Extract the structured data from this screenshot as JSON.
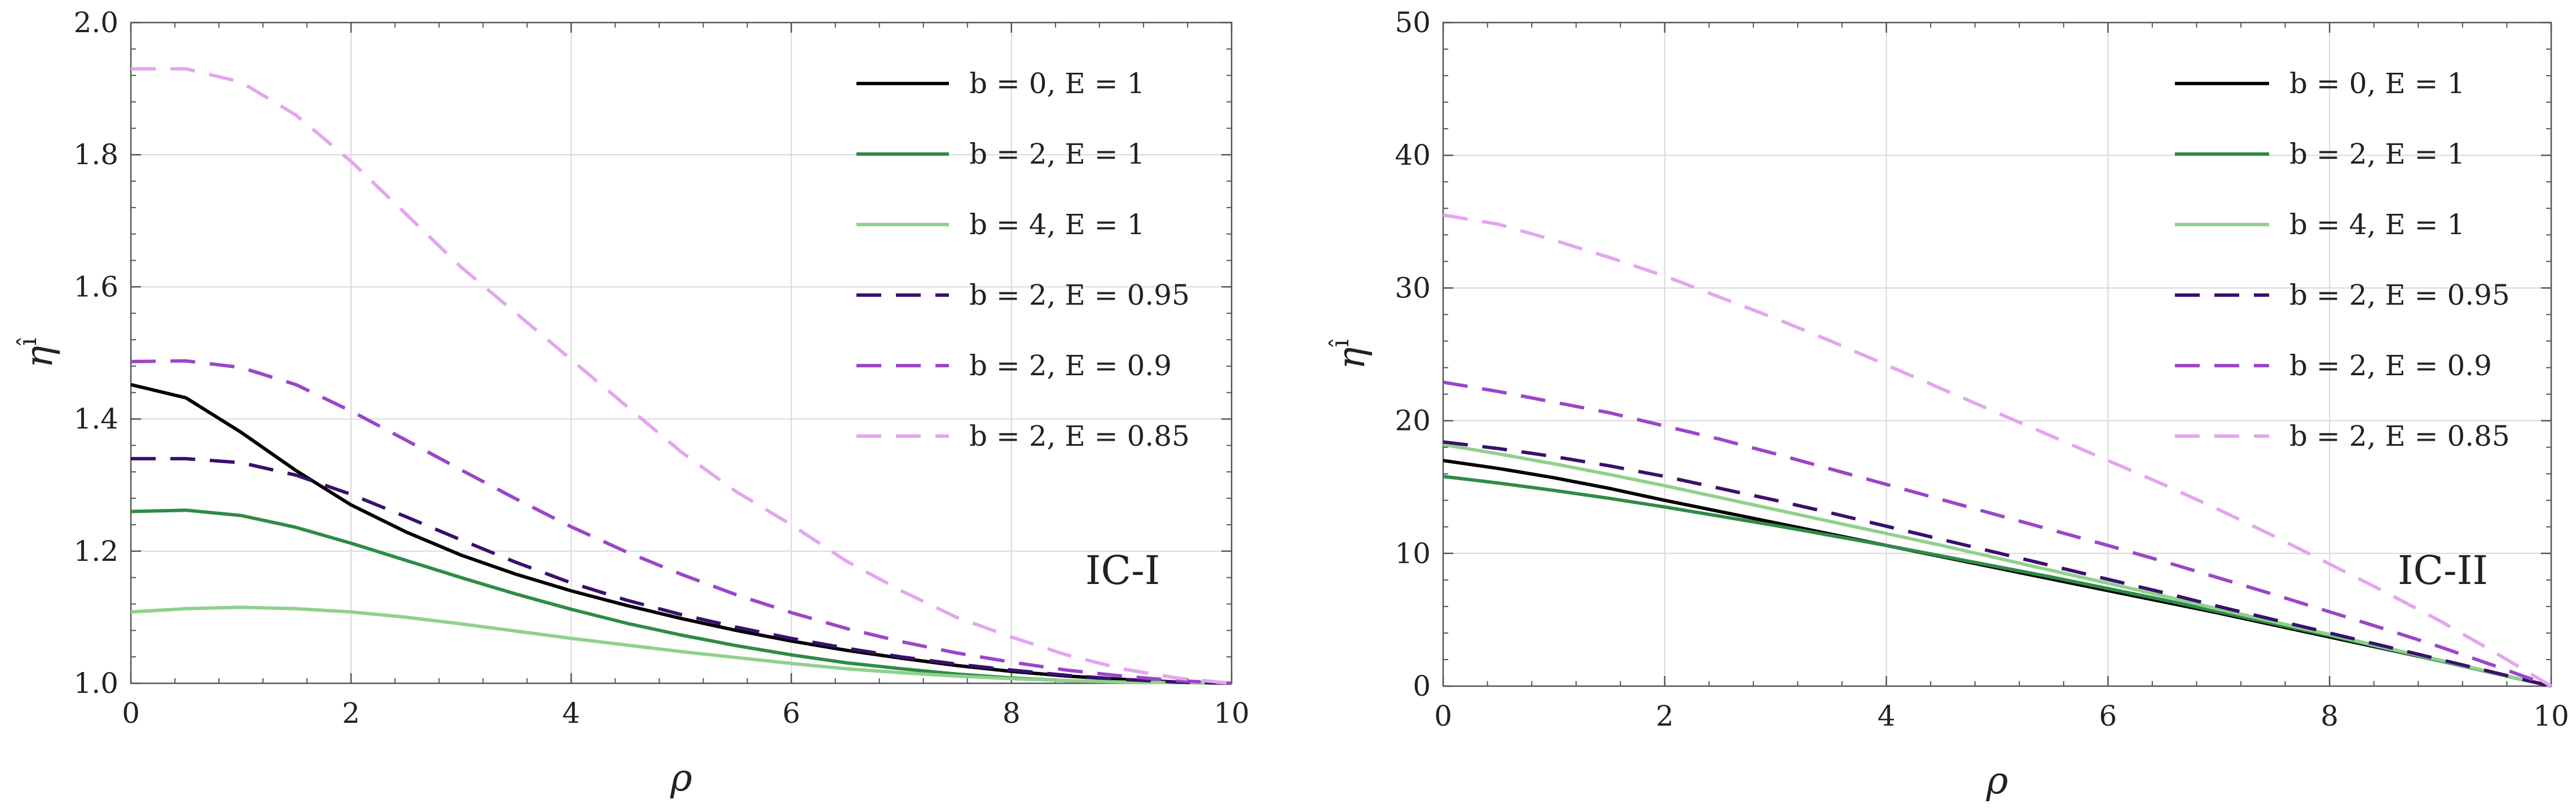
{
  "chart_data": [
    {
      "type": "line",
      "panel": "left",
      "annotation": "IC-I",
      "xlabel": "ρ",
      "ylabel": "η",
      "ylabel_superscript": "î",
      "xlim": [
        0,
        10
      ],
      "ylim": [
        1.0,
        2.0
      ],
      "xticks": [
        0,
        2,
        4,
        6,
        8,
        10
      ],
      "xtick_labels": [
        "0",
        "2",
        "4",
        "6",
        "8",
        "10"
      ],
      "yticks": [
        1.0,
        1.2,
        1.4,
        1.6,
        1.8,
        2.0
      ],
      "ytick_labels": [
        "1.0",
        "1.2",
        "1.4",
        "1.6",
        "1.8",
        "2.0"
      ],
      "grid": true,
      "legend_position": "top-right",
      "x": [
        0,
        0.5,
        1,
        1.5,
        2,
        2.5,
        3,
        3.5,
        4,
        4.5,
        5,
        5.5,
        6,
        6.5,
        7,
        7.5,
        8,
        8.5,
        9,
        9.5,
        10
      ],
      "series": [
        {
          "name": "b = 0,  E = 1",
          "color": "#000000",
          "dash": "solid",
          "values": [
            1.452,
            1.432,
            1.38,
            1.322,
            1.27,
            1.229,
            1.194,
            1.165,
            1.14,
            1.118,
            1.098,
            1.08,
            1.064,
            1.05,
            1.038,
            1.027,
            1.018,
            1.011,
            1.006,
            1.002,
            1.0
          ]
        },
        {
          "name": "b = 2,  E = 1",
          "color": "#2e8b47",
          "dash": "solid",
          "values": [
            1.26,
            1.262,
            1.254,
            1.236,
            1.212,
            1.186,
            1.16,
            1.135,
            1.112,
            1.091,
            1.073,
            1.057,
            1.043,
            1.031,
            1.022,
            1.014,
            1.008,
            1.004,
            1.002,
            1.001,
            1.0
          ]
        },
        {
          "name": "b = 4,  E = 1",
          "color": "#8fd18c",
          "dash": "solid",
          "values": [
            1.108,
            1.113,
            1.115,
            1.113,
            1.108,
            1.1,
            1.09,
            1.079,
            1.068,
            1.058,
            1.048,
            1.039,
            1.03,
            1.022,
            1.016,
            1.011,
            1.007,
            1.004,
            1.002,
            1.001,
            1.0
          ]
        },
        {
          "name": "b = 2,  E = 0.95",
          "color": "#3a0f6e",
          "dash": "dashed",
          "values": [
            1.34,
            1.34,
            1.334,
            1.315,
            1.286,
            1.252,
            1.217,
            1.183,
            1.152,
            1.126,
            1.104,
            1.085,
            1.068,
            1.053,
            1.04,
            1.029,
            1.02,
            1.012,
            1.006,
            1.002,
            1.0
          ]
        },
        {
          "name": "b = 2,  E = 0.9",
          "color": "#9b45c9",
          "dash": "dashed",
          "values": [
            1.487,
            1.488,
            1.478,
            1.452,
            1.412,
            1.368,
            1.323,
            1.279,
            1.237,
            1.199,
            1.165,
            1.134,
            1.107,
            1.083,
            1.063,
            1.046,
            1.032,
            1.02,
            1.011,
            1.004,
            1.0
          ]
        },
        {
          "name": "b = 2,  E = 0.85",
          "color": "#e3a6ee",
          "dash": "dashed",
          "values": [
            1.93,
            1.93,
            1.91,
            1.86,
            1.79,
            1.71,
            1.63,
            1.56,
            1.49,
            1.42,
            1.35,
            1.29,
            1.24,
            1.185,
            1.14,
            1.1,
            1.07,
            1.043,
            1.022,
            1.008,
            1.0
          ]
        }
      ]
    },
    {
      "type": "line",
      "panel": "right",
      "annotation": "IC-II",
      "xlabel": "ρ",
      "ylabel": "η",
      "ylabel_superscript": "î",
      "xlim": [
        0,
        10
      ],
      "ylim": [
        0,
        50
      ],
      "xticks": [
        0,
        2,
        4,
        6,
        8,
        10
      ],
      "xtick_labels": [
        "0",
        "2",
        "4",
        "6",
        "8",
        "10"
      ],
      "yticks": [
        0,
        10,
        20,
        30,
        40,
        50
      ],
      "ytick_labels": [
        "0",
        "10",
        "20",
        "30",
        "40",
        "50"
      ],
      "grid": true,
      "legend_position": "top-right",
      "x": [
        0,
        0.5,
        1,
        1.5,
        2,
        2.5,
        3,
        3.5,
        4,
        4.5,
        5,
        5.5,
        6,
        6.5,
        7,
        7.5,
        8,
        8.5,
        9,
        9.5,
        10
      ],
      "series": [
        {
          "name": "b = 0,  E = 1",
          "color": "#000000",
          "dash": "solid",
          "values": [
            17.0,
            16.4,
            15.7,
            14.9,
            14.0,
            13.15,
            12.3,
            11.45,
            10.6,
            9.75,
            8.9,
            8.05,
            7.2,
            6.35,
            5.5,
            4.6,
            3.7,
            2.8,
            1.9,
            0.95,
            0.0
          ]
        },
        {
          "name": "b = 2,  E = 1",
          "color": "#2e8b47",
          "dash": "solid",
          "values": [
            15.8,
            15.3,
            14.75,
            14.15,
            13.5,
            12.8,
            12.1,
            11.35,
            10.6,
            9.8,
            9.0,
            8.2,
            7.35,
            6.5,
            5.6,
            4.7,
            3.8,
            2.85,
            1.9,
            0.95,
            0.0
          ]
        },
        {
          "name": "b = 4,  E = 1",
          "color": "#8fd18c",
          "dash": "solid",
          "values": [
            18.2,
            17.5,
            16.75,
            15.95,
            15.1,
            14.2,
            13.3,
            12.4,
            11.5,
            10.6,
            9.65,
            8.7,
            7.75,
            6.8,
            5.8,
            4.85,
            3.9,
            2.9,
            1.95,
            0.97,
            0.0
          ]
        },
        {
          "name": "b = 2,  E = 0.95",
          "color": "#3a0f6e",
          "dash": "dashed",
          "values": [
            18.4,
            17.9,
            17.3,
            16.6,
            15.8,
            14.9,
            14.0,
            13.05,
            12.05,
            11.05,
            10.05,
            9.05,
            8.05,
            7.05,
            6.0,
            5.0,
            4.0,
            3.0,
            2.0,
            1.0,
            0.0
          ]
        },
        {
          "name": "b = 2,  E = 0.9",
          "color": "#9b45c9",
          "dash": "dashed",
          "values": [
            22.9,
            22.2,
            21.4,
            20.6,
            19.6,
            18.6,
            17.5,
            16.35,
            15.2,
            14.05,
            12.9,
            11.75,
            10.6,
            9.4,
            8.15,
            6.9,
            5.6,
            4.3,
            2.95,
            1.5,
            0.0
          ]
        },
        {
          "name": "b = 2,  E = 0.85",
          "color": "#e3a6ee",
          "dash": "dashed",
          "values": [
            35.5,
            34.8,
            33.6,
            32.3,
            30.9,
            29.3,
            27.7,
            26.0,
            24.2,
            22.4,
            20.6,
            18.8,
            17.0,
            15.2,
            13.3,
            11.3,
            9.2,
            7.1,
            4.9,
            2.5,
            0.0
          ]
        }
      ]
    }
  ]
}
